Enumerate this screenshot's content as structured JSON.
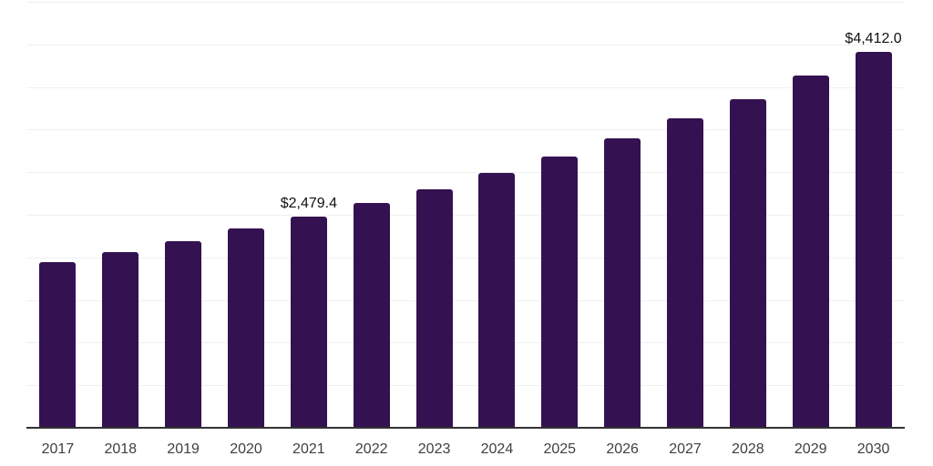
{
  "chart_data": {
    "type": "bar",
    "title": "",
    "xlabel": "",
    "ylabel": "",
    "categories": [
      "2017",
      "2018",
      "2019",
      "2020",
      "2021",
      "2022",
      "2023",
      "2024",
      "2025",
      "2026",
      "2027",
      "2028",
      "2029",
      "2030"
    ],
    "values": [
      1940,
      2060,
      2195,
      2340,
      2479.4,
      2640,
      2800,
      2990,
      3185,
      3395,
      3630,
      3855,
      4135,
      4412.0
    ],
    "value_labels": {
      "2021": "$2,479.4",
      "2030": "$4,412.0"
    },
    "ylim": [
      0,
      5000
    ],
    "grid_step": 500,
    "grid": true,
    "legend": false,
    "y_axis_ticks_visible": false
  },
  "style": {
    "bar_color": "#341150",
    "grid_color": "#f0f0f0",
    "axis_color": "#333333",
    "year_label_color": "#404040",
    "value_label_color": "#111111",
    "background": "#ffffff"
  }
}
